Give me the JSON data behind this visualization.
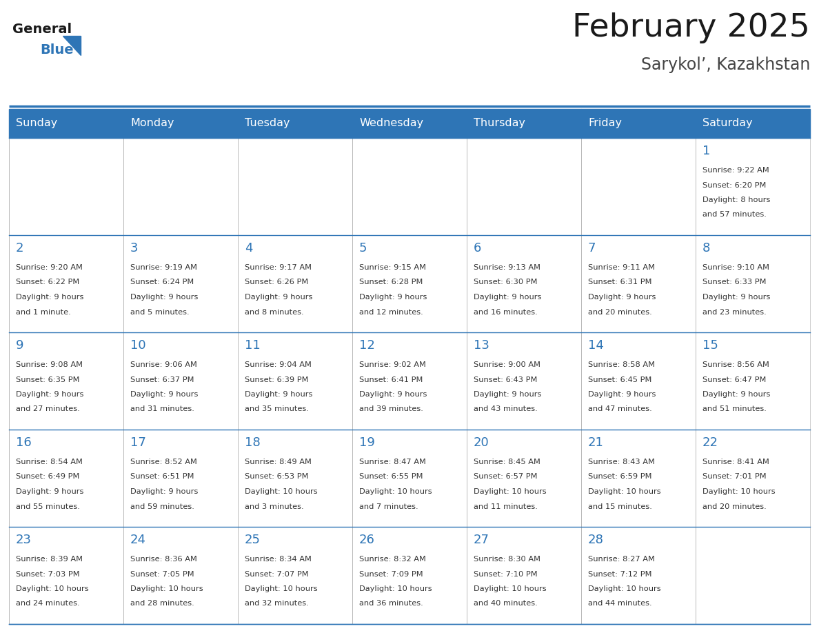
{
  "title": "February 2025",
  "subtitle": "Sarykol’, Kazakhstan",
  "header_bg": "#2E75B6",
  "header_text_color": "#FFFFFF",
  "text_color": "#333333",
  "day_num_color": "#2E75B6",
  "line_color": "#2E75B6",
  "logo_general_color": "#1a1a1a",
  "logo_blue_color": "#2E75B6",
  "days_of_week": [
    "Sunday",
    "Monday",
    "Tuesday",
    "Wednesday",
    "Thursday",
    "Friday",
    "Saturday"
  ],
  "calendar_data": [
    [
      null,
      null,
      null,
      null,
      null,
      null,
      {
        "day": "1",
        "sunrise": "9:22 AM",
        "sunset": "6:20 PM",
        "daylight_line1": "8 hours",
        "daylight_line2": "and 57 minutes."
      }
    ],
    [
      {
        "day": "2",
        "sunrise": "9:20 AM",
        "sunset": "6:22 PM",
        "daylight_line1": "9 hours",
        "daylight_line2": "and 1 minute."
      },
      {
        "day": "3",
        "sunrise": "9:19 AM",
        "sunset": "6:24 PM",
        "daylight_line1": "9 hours",
        "daylight_line2": "and 5 minutes."
      },
      {
        "day": "4",
        "sunrise": "9:17 AM",
        "sunset": "6:26 PM",
        "daylight_line1": "9 hours",
        "daylight_line2": "and 8 minutes."
      },
      {
        "day": "5",
        "sunrise": "9:15 AM",
        "sunset": "6:28 PM",
        "daylight_line1": "9 hours",
        "daylight_line2": "and 12 minutes."
      },
      {
        "day": "6",
        "sunrise": "9:13 AM",
        "sunset": "6:30 PM",
        "daylight_line1": "9 hours",
        "daylight_line2": "and 16 minutes."
      },
      {
        "day": "7",
        "sunrise": "9:11 AM",
        "sunset": "6:31 PM",
        "daylight_line1": "9 hours",
        "daylight_line2": "and 20 minutes."
      },
      {
        "day": "8",
        "sunrise": "9:10 AM",
        "sunset": "6:33 PM",
        "daylight_line1": "9 hours",
        "daylight_line2": "and 23 minutes."
      }
    ],
    [
      {
        "day": "9",
        "sunrise": "9:08 AM",
        "sunset": "6:35 PM",
        "daylight_line1": "9 hours",
        "daylight_line2": "and 27 minutes."
      },
      {
        "day": "10",
        "sunrise": "9:06 AM",
        "sunset": "6:37 PM",
        "daylight_line1": "9 hours",
        "daylight_line2": "and 31 minutes."
      },
      {
        "day": "11",
        "sunrise": "9:04 AM",
        "sunset": "6:39 PM",
        "daylight_line1": "9 hours",
        "daylight_line2": "and 35 minutes."
      },
      {
        "day": "12",
        "sunrise": "9:02 AM",
        "sunset": "6:41 PM",
        "daylight_line1": "9 hours",
        "daylight_line2": "and 39 minutes."
      },
      {
        "day": "13",
        "sunrise": "9:00 AM",
        "sunset": "6:43 PM",
        "daylight_line1": "9 hours",
        "daylight_line2": "and 43 minutes."
      },
      {
        "day": "14",
        "sunrise": "8:58 AM",
        "sunset": "6:45 PM",
        "daylight_line1": "9 hours",
        "daylight_line2": "and 47 minutes."
      },
      {
        "day": "15",
        "sunrise": "8:56 AM",
        "sunset": "6:47 PM",
        "daylight_line1": "9 hours",
        "daylight_line2": "and 51 minutes."
      }
    ],
    [
      {
        "day": "16",
        "sunrise": "8:54 AM",
        "sunset": "6:49 PM",
        "daylight_line1": "9 hours",
        "daylight_line2": "and 55 minutes."
      },
      {
        "day": "17",
        "sunrise": "8:52 AM",
        "sunset": "6:51 PM",
        "daylight_line1": "9 hours",
        "daylight_line2": "and 59 minutes."
      },
      {
        "day": "18",
        "sunrise": "8:49 AM",
        "sunset": "6:53 PM",
        "daylight_line1": "10 hours",
        "daylight_line2": "and 3 minutes."
      },
      {
        "day": "19",
        "sunrise": "8:47 AM",
        "sunset": "6:55 PM",
        "daylight_line1": "10 hours",
        "daylight_line2": "and 7 minutes."
      },
      {
        "day": "20",
        "sunrise": "8:45 AM",
        "sunset": "6:57 PM",
        "daylight_line1": "10 hours",
        "daylight_line2": "and 11 minutes."
      },
      {
        "day": "21",
        "sunrise": "8:43 AM",
        "sunset": "6:59 PM",
        "daylight_line1": "10 hours",
        "daylight_line2": "and 15 minutes."
      },
      {
        "day": "22",
        "sunrise": "8:41 AM",
        "sunset": "7:01 PM",
        "daylight_line1": "10 hours",
        "daylight_line2": "and 20 minutes."
      }
    ],
    [
      {
        "day": "23",
        "sunrise": "8:39 AM",
        "sunset": "7:03 PM",
        "daylight_line1": "10 hours",
        "daylight_line2": "and 24 minutes."
      },
      {
        "day": "24",
        "sunrise": "8:36 AM",
        "sunset": "7:05 PM",
        "daylight_line1": "10 hours",
        "daylight_line2": "and 28 minutes."
      },
      {
        "day": "25",
        "sunrise": "8:34 AM",
        "sunset": "7:07 PM",
        "daylight_line1": "10 hours",
        "daylight_line2": "and 32 minutes."
      },
      {
        "day": "26",
        "sunrise": "8:32 AM",
        "sunset": "7:09 PM",
        "daylight_line1": "10 hours",
        "daylight_line2": "and 36 minutes."
      },
      {
        "day": "27",
        "sunrise": "8:30 AM",
        "sunset": "7:10 PM",
        "daylight_line1": "10 hours",
        "daylight_line2": "and 40 minutes."
      },
      {
        "day": "28",
        "sunrise": "8:27 AM",
        "sunset": "7:12 PM",
        "daylight_line1": "10 hours",
        "daylight_line2": "and 44 minutes."
      },
      null
    ]
  ],
  "figsize": [
    11.88,
    9.18
  ],
  "dpi": 100
}
